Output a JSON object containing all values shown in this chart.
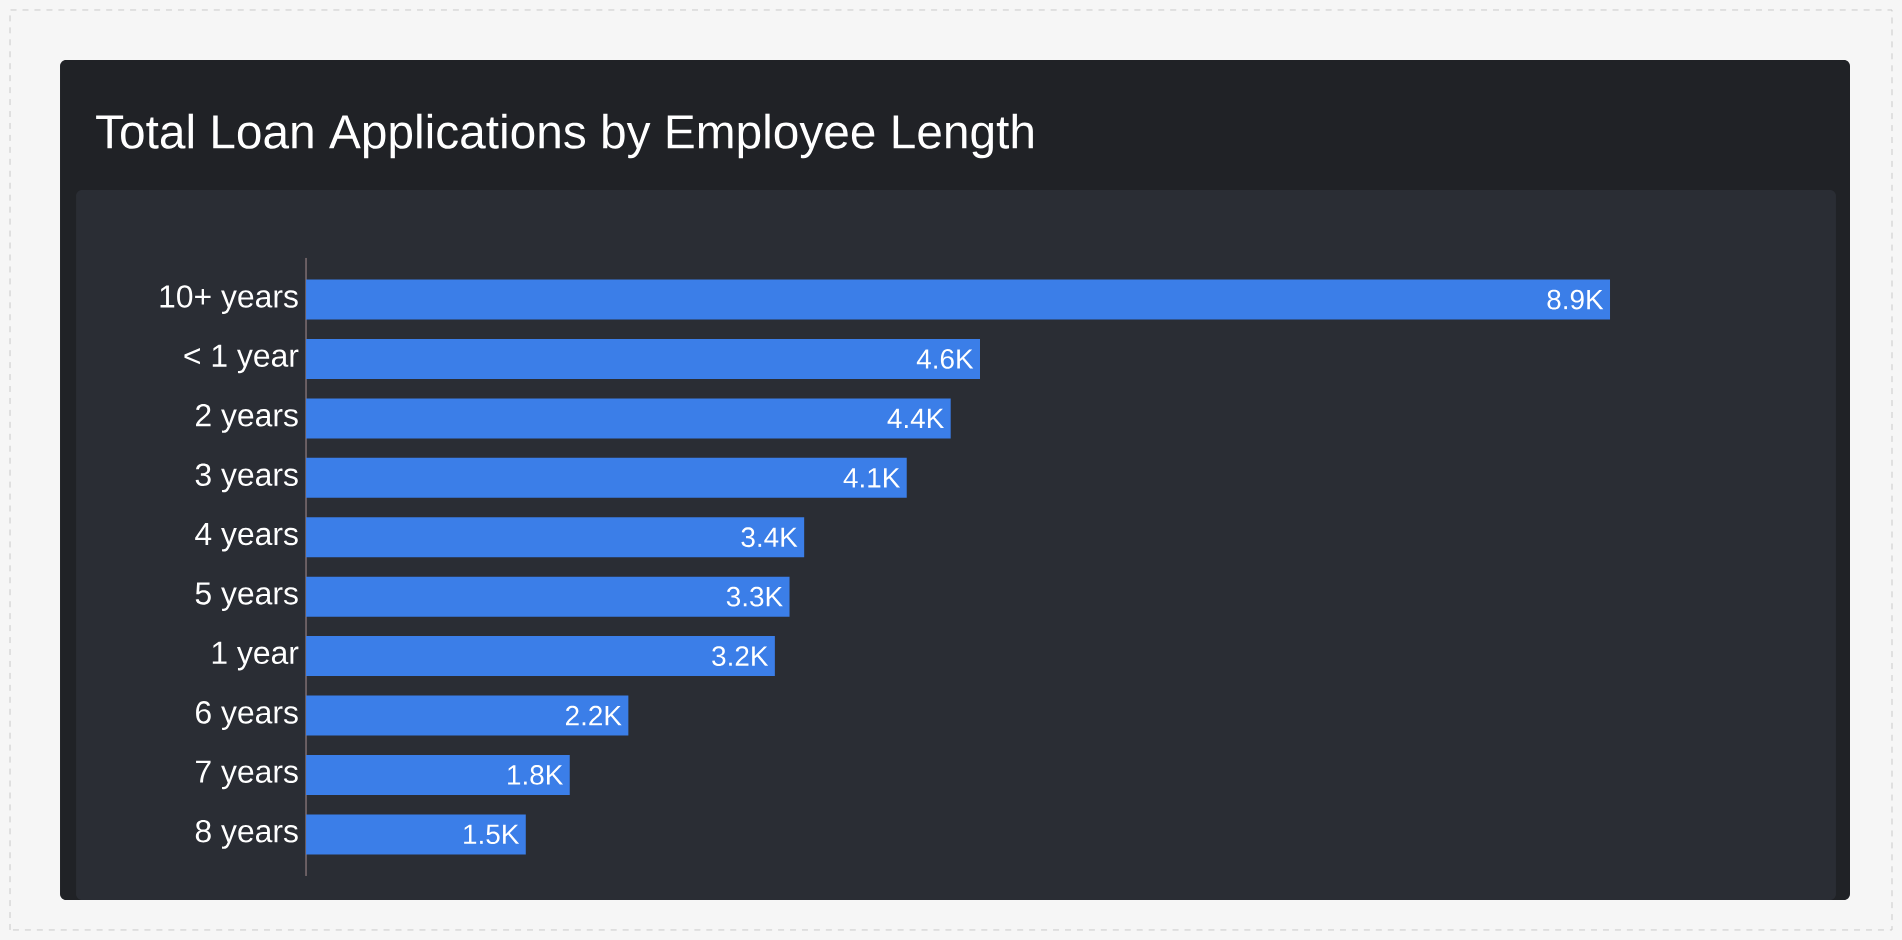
{
  "chart_data": {
    "type": "bar",
    "orientation": "horizontal",
    "title": "Total Loan Applications by Employee Length",
    "categories": [
      "10+ years",
      "< 1 year",
      "2 years",
      "3 years",
      "4 years",
      "5 years",
      "1 year",
      "6 years",
      "7 years",
      "8 years"
    ],
    "values": [
      8900,
      4600,
      4400,
      4100,
      3400,
      3300,
      3200,
      2200,
      1800,
      1500
    ],
    "value_labels": [
      "8.9K",
      "4.6K",
      "4.4K",
      "4.1K",
      "3.4K",
      "3.3K",
      "3.2K",
      "2.2K",
      "1.8K",
      "1.5K"
    ],
    "color": "#3b7ee8"
  }
}
